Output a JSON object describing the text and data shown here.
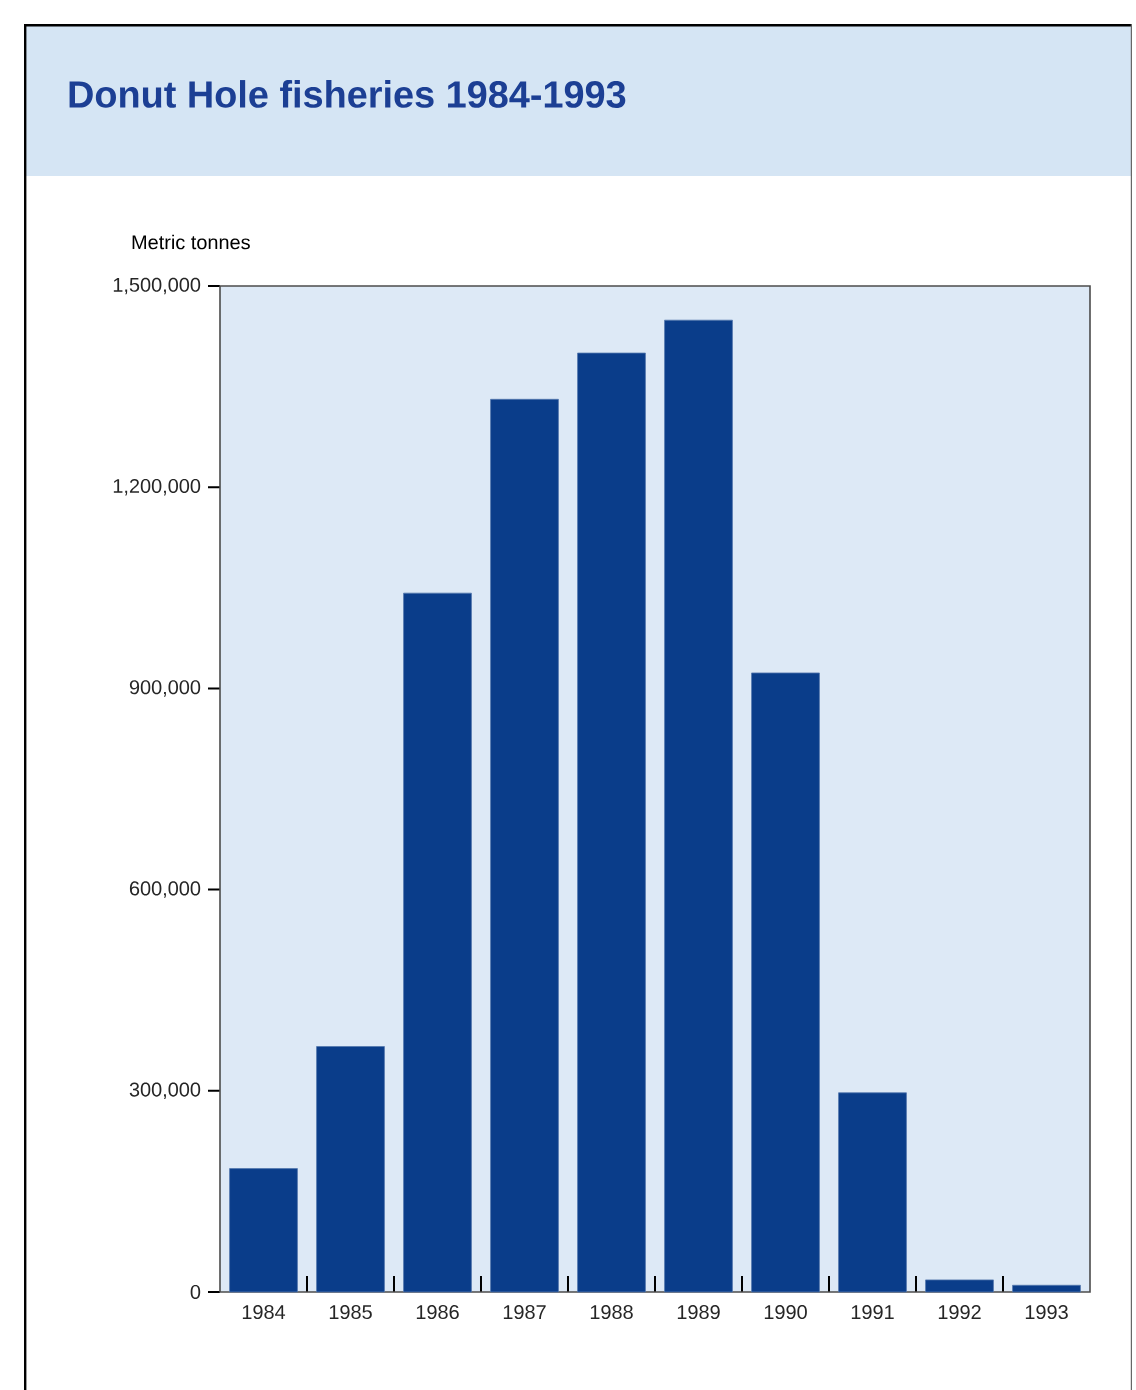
{
  "chart_data": {
    "type": "bar",
    "title": "Donut Hole fisheries 1984-1993",
    "ylabel": "Metric tonnes",
    "categories": [
      "1984",
      "1985",
      "1986",
      "1987",
      "1988",
      "1989",
      "1990",
      "1991",
      "1992",
      "1993"
    ],
    "values": [
      184000,
      366000,
      1042000,
      1331000,
      1400000,
      1449000,
      923000,
      297000,
      18000,
      10000
    ],
    "color": "#0a3d8a",
    "ylim": [
      0,
      1500000
    ],
    "yticks": [
      {
        "value": 0,
        "label": "0"
      },
      {
        "value": 300000,
        "label": "300,000"
      },
      {
        "value": 600000,
        "label": "600,000"
      },
      {
        "value": 900000,
        "label": "900,000"
      },
      {
        "value": 1200000,
        "label": "1,200,000"
      },
      {
        "value": 1500000,
        "label": "1,500,000"
      }
    ],
    "grid": false
  }
}
